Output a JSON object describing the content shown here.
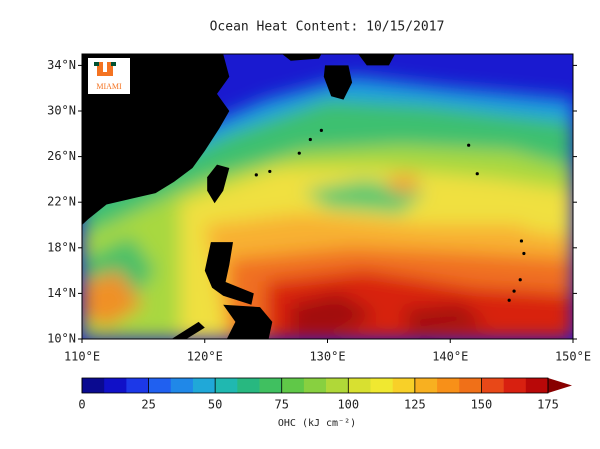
{
  "map": {
    "title": "Ocean Heat Content: 10/15/2017",
    "logo_text": "MIAMI",
    "xlim": [
      110,
      150
    ],
    "ylim": [
      10,
      35
    ],
    "xticks": [
      {
        "value": 110,
        "label": "110°E"
      },
      {
        "value": 120,
        "label": "120°E"
      },
      {
        "value": 130,
        "label": "130°E"
      },
      {
        "value": 140,
        "label": "140°E"
      },
      {
        "value": 150,
        "label": "150°E"
      }
    ],
    "yticks": [
      {
        "value": 10,
        "label": "10°N"
      },
      {
        "value": 14,
        "label": "14°N"
      },
      {
        "value": 18,
        "label": "18°N"
      },
      {
        "value": 22,
        "label": "22°N"
      },
      {
        "value": 26,
        "label": "26°N"
      },
      {
        "value": 30,
        "label": "30°N"
      },
      {
        "value": 34,
        "label": "34°N"
      }
    ],
    "colorbar": {
      "label": "OHC (kJ cm⁻²)",
      "lim": [
        0,
        175
      ],
      "ticks": [
        0,
        25,
        50,
        75,
        100,
        125,
        150,
        175
      ]
    }
  }
}
